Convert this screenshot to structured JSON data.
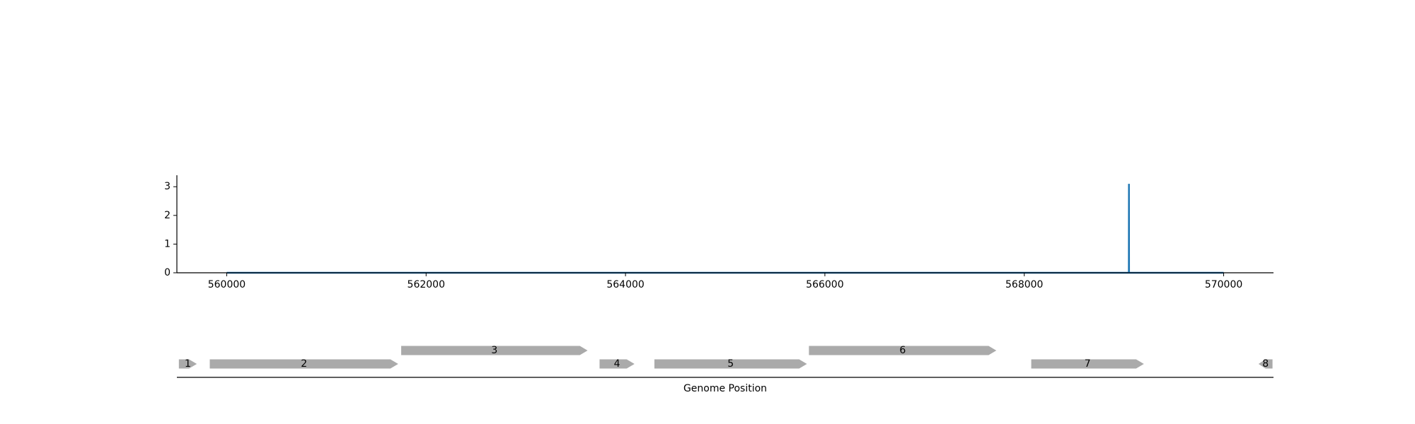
{
  "chart_data": [
    {
      "type": "line",
      "title": "",
      "xlabel": "",
      "ylabel": "",
      "xlim": [
        559500,
        570500
      ],
      "ylim": [
        0,
        3.4
      ],
      "xticks": [
        560000,
        562000,
        564000,
        566000,
        568000,
        570000
      ],
      "xtick_labels": [
        "560000",
        "562000",
        "564000",
        "566000",
        "568000",
        "570000"
      ],
      "yticks": [
        0,
        1,
        2,
        3
      ],
      "ytick_labels": [
        "0",
        "1",
        "2",
        "3"
      ],
      "grid": false,
      "color": "#1f77b4",
      "series": [
        {
          "x": [
            560000,
            569049,
            569050,
            569051,
            570000
          ],
          "y": [
            0,
            0,
            3.1,
            0,
            0
          ]
        }
      ]
    },
    {
      "type": "gene_track",
      "xlabel": "Genome Position",
      "xlim": [
        559500,
        570500
      ],
      "color": "#aaaaaa",
      "genes": [
        {
          "label": "1",
          "start": 559520,
          "end": 559700,
          "strand": "+"
        },
        {
          "label": "2",
          "start": 559830,
          "end": 561720,
          "strand": "+"
        },
        {
          "label": "3",
          "start": 561750,
          "end": 563620,
          "strand": "+"
        },
        {
          "label": "4",
          "start": 563740,
          "end": 564090,
          "strand": "+"
        },
        {
          "label": "5",
          "start": 564290,
          "end": 565820,
          "strand": "+"
        },
        {
          "label": "6",
          "start": 565840,
          "end": 567720,
          "strand": "+"
        },
        {
          "label": "7",
          "start": 568070,
          "end": 569200,
          "strand": "+"
        },
        {
          "label": "8",
          "start": 570350,
          "end": 570490,
          "strand": "-"
        }
      ]
    }
  ]
}
